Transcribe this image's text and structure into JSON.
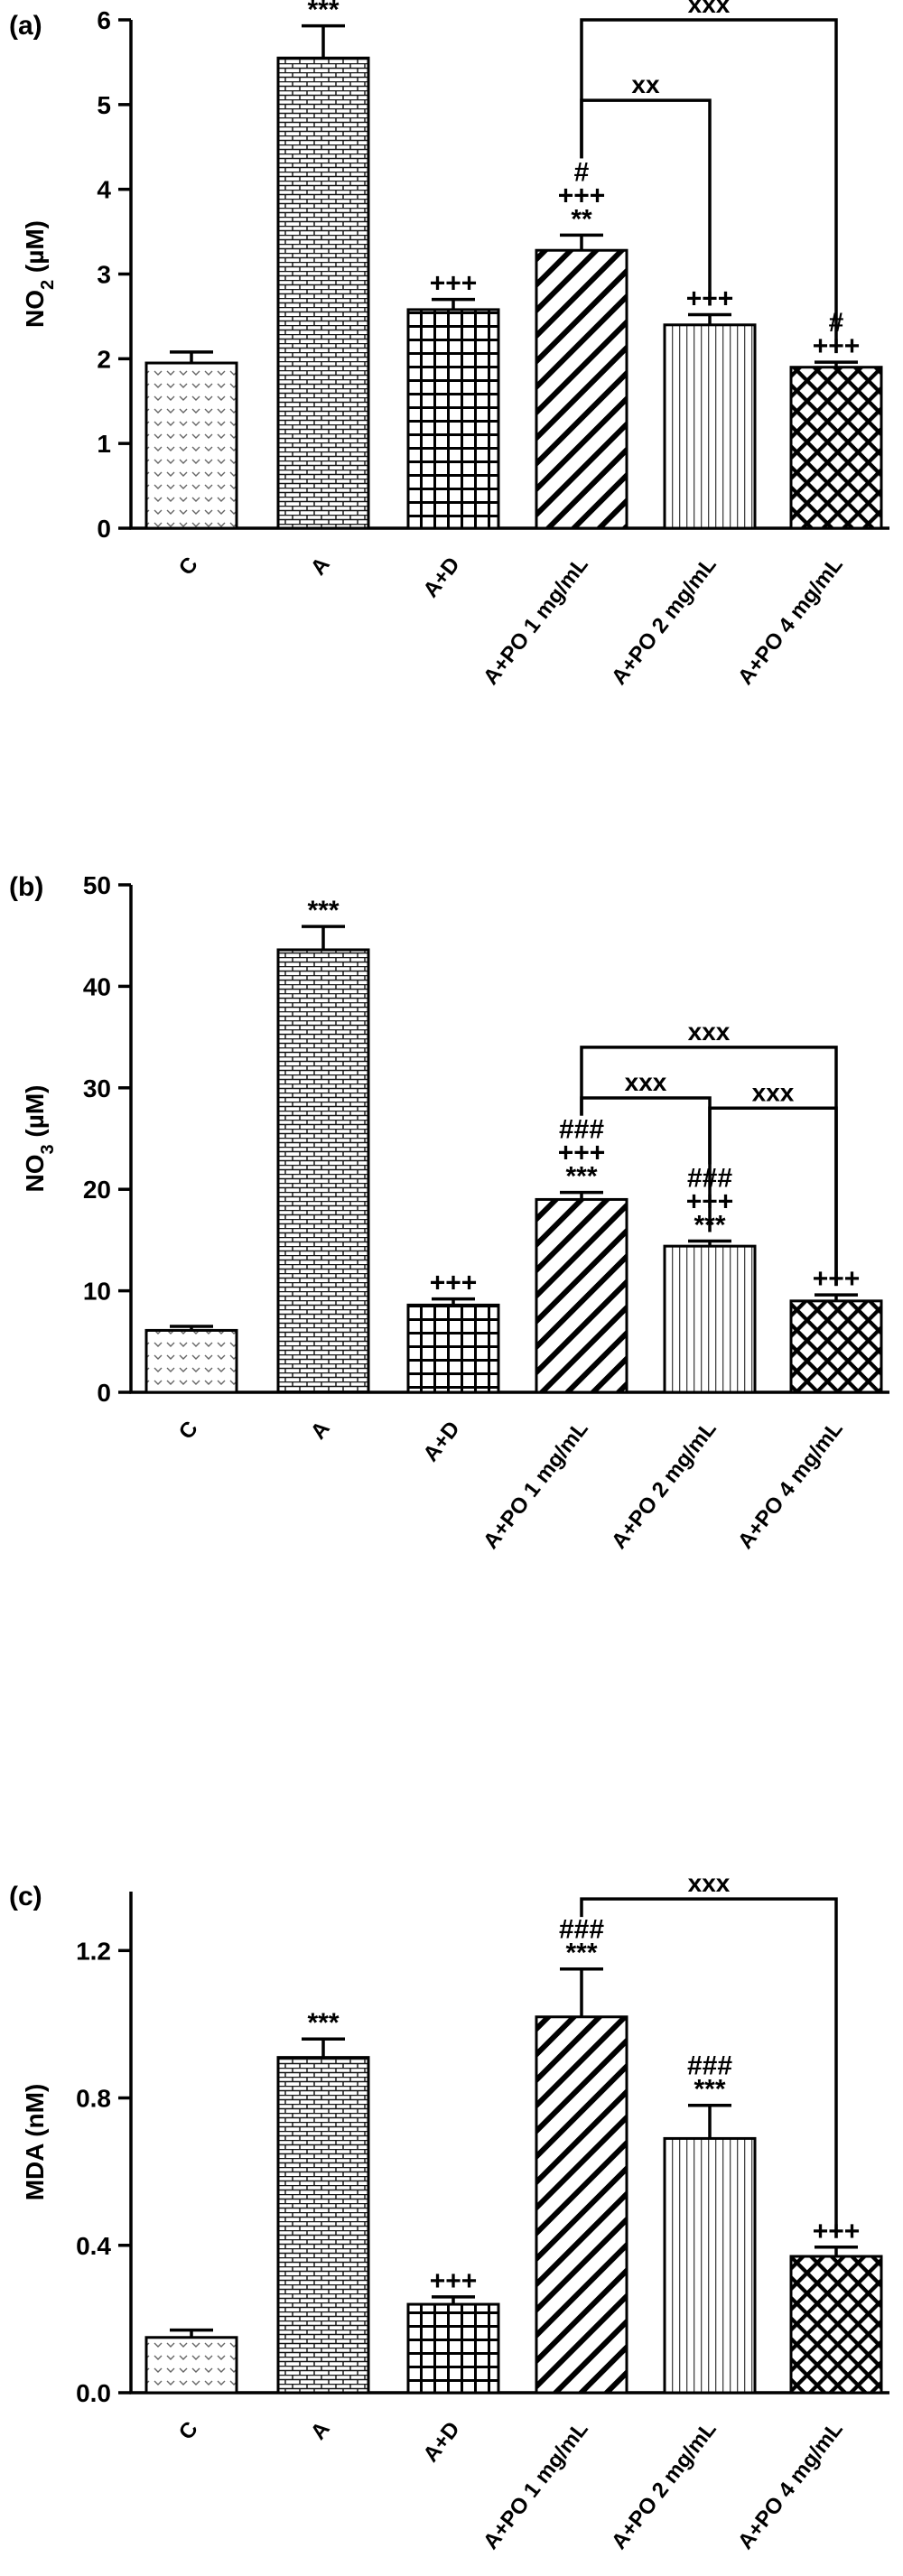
{
  "chart_data": [
    {
      "type": "bar",
      "panel_label": "(a)",
      "ylabel_main": "NO",
      "ylabel_sub": "2",
      "ylabel_unit": " (µM)",
      "yticks": [
        "0",
        "1",
        "2",
        "3",
        "4",
        "5",
        "6"
      ],
      "ylim": [
        0,
        6
      ],
      "categories": [
        "C",
        "A",
        "A+D",
        "A+PO 1 mg/mL",
        "A+PO 2 mg/mL",
        "A+PO 4 mg/mL"
      ],
      "values": [
        1.95,
        5.55,
        2.58,
        3.28,
        2.4,
        1.9
      ],
      "errors": [
        0.13,
        0.38,
        0.12,
        0.18,
        0.12,
        0.06
      ],
      "patterns": [
        "chevron",
        "brick",
        "grid",
        "diagonal",
        "vertical",
        "crosshatch"
      ],
      "significance": [
        [],
        [
          "***"
        ],
        [
          "+++"
        ],
        [
          "#",
          "+++",
          "**"
        ],
        [
          "+++"
        ],
        [
          "#",
          "+++"
        ]
      ],
      "comparisons": [
        {
          "from": 3,
          "to": 5,
          "label": "xxx",
          "y": 6.0
        },
        {
          "from": 3,
          "to": 4,
          "label": "xx",
          "y": 5.05
        }
      ]
    },
    {
      "type": "bar",
      "panel_label": "(b)",
      "ylabel_main": "NO",
      "ylabel_sub": "3",
      "ylabel_unit": " (µM)",
      "yticks": [
        "0",
        "10",
        "20",
        "30",
        "40",
        "50"
      ],
      "ylim": [
        0,
        50
      ],
      "categories": [
        "C",
        "A",
        "A+D",
        "A+PO 1 mg/mL",
        "A+PO 2 mg/mL",
        "A+PO 4 mg/mL"
      ],
      "values": [
        6.1,
        43.6,
        8.6,
        19.0,
        14.4,
        9.0
      ],
      "errors": [
        0.4,
        2.3,
        0.6,
        0.7,
        0.5,
        0.6
      ],
      "patterns": [
        "chevron",
        "brick",
        "grid",
        "diagonal",
        "vertical",
        "crosshatch"
      ],
      "significance": [
        [],
        [
          "***"
        ],
        [
          "+++"
        ],
        [
          "###",
          "+++",
          "***"
        ],
        [
          "###",
          "+++",
          "***"
        ],
        [
          "+++"
        ]
      ],
      "comparisons": [
        {
          "from": 3,
          "to": 5,
          "label": "xxx",
          "y": 34.0
        },
        {
          "from": 3,
          "to": 4,
          "label": "xxx",
          "y": 29.0
        },
        {
          "from": 4,
          "to": 5,
          "label": "xxx",
          "y": 28.0
        }
      ]
    },
    {
      "type": "bar",
      "panel_label": "(c)",
      "ylabel_main": "MDA",
      "ylabel_sub": "",
      "ylabel_unit": " (nM)",
      "yticks": [
        "0.0",
        "0.4",
        "0.8",
        "1.2"
      ],
      "ylim": [
        0,
        1.36
      ],
      "categories": [
        "C",
        "A",
        "A+D",
        "A+PO 1 mg/mL",
        "A+PO 2 mg/mL",
        "A+PO 4 mg/mL"
      ],
      "values": [
        0.15,
        0.91,
        0.24,
        1.02,
        0.69,
        0.37
      ],
      "errors": [
        0.02,
        0.05,
        0.02,
        0.13,
        0.09,
        0.025
      ],
      "patterns": [
        "chevron",
        "brick",
        "grid",
        "diagonal",
        "vertical",
        "crosshatch"
      ],
      "significance": [
        [],
        [
          "***"
        ],
        [
          "+++"
        ],
        [
          "###",
          "***"
        ],
        [
          "###",
          "***"
        ],
        [
          "+++"
        ]
      ],
      "comparisons": [
        {
          "from": 3,
          "to": 5,
          "label": "xxx",
          "y": 1.34
        }
      ]
    }
  ]
}
